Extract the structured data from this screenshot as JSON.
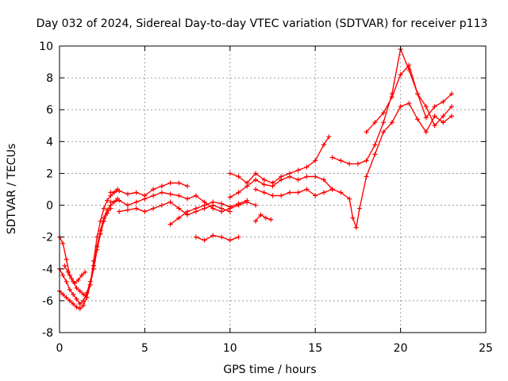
{
  "chart_data": {
    "type": "scatter",
    "title": "Day 032 of 2024, Sidereal Day-to-day VTEC variation (SDTVAR) for receiver p113",
    "xlabel": "GPS time / hours",
    "ylabel": "SDTVAR / TECUs",
    "xlim": [
      0,
      25
    ],
    "ylim": [
      -8,
      10
    ],
    "xticks": [
      0,
      5,
      10,
      15,
      20,
      25
    ],
    "yticks": [
      -8,
      -6,
      -4,
      -2,
      0,
      2,
      4,
      6,
      8,
      10
    ],
    "xtick_labels": [
      "0",
      "5",
      "10",
      "15",
      "20",
      "25"
    ],
    "ytick_labels": [
      "-8",
      "-6",
      "-4",
      "-2",
      "0",
      "2",
      "4",
      "6",
      "8",
      "10"
    ],
    "grid": true,
    "marker": "+",
    "series": [
      {
        "color": "#ff0000",
        "x": [
          0.0,
          0.2,
          0.4,
          0.6,
          0.8,
          1.0,
          1.2,
          1.4,
          1.6,
          1.8,
          2.0,
          2.2,
          2.4,
          2.6,
          2.8,
          3.0,
          3.2,
          3.4
        ],
        "y": [
          -2.0,
          -2.4,
          -3.4,
          -4.4,
          -4.8,
          -5.2,
          -5.4,
          -5.6,
          -5.8,
          -5.0,
          -3.5,
          -2.0,
          -1.0,
          -0.2,
          0.3,
          0.6,
          0.8,
          1.0
        ]
      },
      {
        "color": "#ff0000",
        "x": [
          0.0,
          0.2,
          0.4,
          0.6,
          0.8,
          1.0,
          1.2,
          1.4,
          1.6,
          1.8,
          2.0,
          2.2,
          2.4,
          2.6,
          2.8,
          3.0,
          3.2,
          3.4
        ],
        "y": [
          -4.0,
          -4.4,
          -4.8,
          -5.3,
          -5.6,
          -5.9,
          -6.2,
          -6.0,
          -5.5,
          -4.8,
          -3.8,
          -2.6,
          -1.6,
          -0.8,
          -0.3,
          0.0,
          0.2,
          0.4
        ]
      },
      {
        "color": "#ff0000",
        "x": [
          0.0,
          0.2,
          0.4,
          0.6,
          0.8,
          1.0,
          1.2,
          1.4,
          1.6,
          1.8,
          2.0,
          2.2,
          2.4,
          2.6,
          2.8,
          3.0
        ],
        "y": [
          -5.4,
          -5.6,
          -5.8,
          -6.0,
          -6.2,
          -6.4,
          -6.5,
          -6.3,
          -5.8,
          -5.0,
          -4.0,
          -2.8,
          -1.8,
          -1.0,
          -0.5,
          -0.2
        ]
      },
      {
        "color": "#ff0000",
        "x": [
          0.3,
          0.5,
          0.7,
          0.9,
          1.1,
          1.3,
          1.5
        ],
        "y": [
          -3.8,
          -4.2,
          -4.6,
          -4.9,
          -4.7,
          -4.4,
          -4.2
        ]
      },
      {
        "color": "#ff0000",
        "x": [
          3.0,
          3.5,
          4.0,
          4.5,
          5.0,
          5.5,
          6.0,
          6.5,
          7.0,
          7.5
        ],
        "y": [
          0.8,
          0.9,
          0.7,
          0.8,
          0.6,
          1.0,
          1.2,
          1.4,
          1.4,
          1.2
        ]
      },
      {
        "color": "#ff0000",
        "x": [
          3.0,
          3.5,
          4.0,
          4.5,
          5.0,
          5.5,
          6.0,
          6.5,
          7.0,
          7.5,
          8.0,
          8.5,
          9.0,
          9.5,
          10.0,
          10.5,
          11.0,
          11.5
        ],
        "y": [
          0.2,
          0.3,
          0.0,
          0.2,
          0.4,
          0.6,
          0.8,
          0.7,
          0.6,
          0.4,
          0.6,
          0.2,
          -0.2,
          -0.4,
          -0.2,
          0.0,
          0.2,
          0.0
        ]
      },
      {
        "color": "#ff0000",
        "x": [
          3.5,
          4.0,
          4.5,
          5.0,
          5.5,
          6.0,
          6.5,
          7.0,
          7.5,
          8.0,
          8.5,
          9.0,
          9.5,
          10.0
        ],
        "y": [
          -0.4,
          -0.3,
          -0.2,
          -0.4,
          -0.2,
          0.0,
          0.2,
          -0.2,
          -0.6,
          -0.4,
          -0.2,
          0.0,
          -0.2,
          -0.4
        ]
      },
      {
        "color": "#ff0000",
        "x": [
          6.5,
          7.0,
          7.5,
          8.0,
          8.5,
          9.0,
          9.5,
          10.0,
          10.5,
          11.0
        ],
        "y": [
          -1.2,
          -0.8,
          -0.4,
          -0.2,
          0.0,
          0.2,
          0.1,
          -0.1,
          0.1,
          0.3
        ]
      },
      {
        "color": "#ff0000",
        "x": [
          8.0,
          8.5,
          9.0,
          9.5,
          10.0,
          10.5
        ],
        "y": [
          -2.0,
          -2.2,
          -1.9,
          -2.0,
          -2.2,
          -2.0
        ]
      },
      {
        "color": "#ff0000",
        "x": [
          11.5,
          11.8,
          12.1,
          12.4
        ],
        "y": [
          -1.0,
          -0.6,
          -0.8,
          -0.9
        ]
      },
      {
        "color": "#ff0000",
        "x": [
          10.0,
          10.5,
          11.0,
          11.5,
          12.0,
          12.5,
          13.0,
          13.5,
          14.0,
          14.5,
          15.0,
          15.5,
          15.8
        ],
        "y": [
          2.0,
          1.8,
          1.4,
          2.0,
          1.6,
          1.4,
          1.8,
          2.0,
          2.2,
          2.4,
          2.8,
          3.8,
          4.3
        ]
      },
      {
        "color": "#ff0000",
        "x": [
          10.0,
          10.5,
          11.0,
          11.5,
          12.0,
          12.5,
          13.0,
          13.5,
          14.0,
          14.5,
          15.0,
          15.5,
          16.0
        ],
        "y": [
          0.5,
          0.8,
          1.2,
          1.6,
          1.3,
          1.2,
          1.6,
          1.8,
          1.6,
          1.8,
          1.8,
          1.6,
          1.0
        ]
      },
      {
        "color": "#ff0000",
        "x": [
          11.5,
          12.0,
          12.5,
          13.0,
          13.5,
          14.0,
          14.5,
          15.0,
          15.5,
          16.0
        ],
        "y": [
          1.0,
          0.8,
          0.6,
          0.6,
          0.8,
          0.8,
          1.0,
          0.6,
          0.8,
          1.0
        ]
      },
      {
        "color": "#ff0000",
        "x": [
          16.0,
          16.5,
          17.0,
          17.5,
          18.0,
          18.5,
          19.0,
          19.5,
          20.0,
          20.5,
          21.0,
          21.5,
          22.0,
          22.5,
          23.0
        ],
        "y": [
          3.0,
          2.8,
          2.6,
          2.6,
          2.8,
          3.8,
          5.2,
          7.0,
          9.8,
          8.5,
          7.0,
          5.5,
          6.2,
          6.5,
          7.0
        ]
      },
      {
        "color": "#ff0000",
        "x": [
          16.0,
          16.5,
          17.0,
          17.2,
          17.4,
          17.6,
          18.0,
          18.5,
          19.0,
          19.5,
          20.0,
          20.5,
          21.0,
          21.5,
          22.0,
          22.5,
          23.0
        ],
        "y": [
          1.0,
          0.8,
          0.4,
          -0.8,
          -1.4,
          -0.2,
          1.8,
          3.2,
          4.6,
          5.2,
          6.2,
          6.4,
          5.4,
          4.6,
          5.6,
          5.2,
          5.6
        ]
      },
      {
        "color": "#ff0000",
        "x": [
          18.0,
          18.5,
          19.0,
          19.5,
          20.0,
          20.5,
          21.0,
          21.5,
          22.0,
          22.5,
          23.0
        ],
        "y": [
          4.6,
          5.2,
          5.8,
          6.8,
          8.2,
          8.8,
          7.0,
          6.2,
          5.0,
          5.6,
          6.2
        ]
      }
    ]
  }
}
